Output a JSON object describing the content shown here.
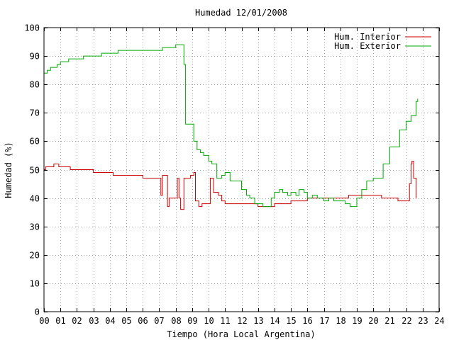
{
  "chart_data": {
    "type": "line",
    "title": "Humedad 12/01/2008",
    "xlabel": "Tiempo (Hora Local Argentina)",
    "ylabel": "Humedad (%)",
    "xlim": [
      0,
      24
    ],
    "ylim": [
      0,
      100
    ],
    "x_ticks": [
      "00",
      "01",
      "02",
      "03",
      "04",
      "05",
      "06",
      "07",
      "08",
      "09",
      "10",
      "11",
      "12",
      "13",
      "14",
      "15",
      "16",
      "17",
      "18",
      "19",
      "20",
      "21",
      "22",
      "23",
      "24"
    ],
    "y_ticks": [
      "0",
      "10",
      "20",
      "30",
      "40",
      "50",
      "60",
      "70",
      "80",
      "90",
      "100"
    ],
    "grid": true,
    "legend_position": "top-right",
    "series": [
      {
        "name": "Hum. Interior",
        "color": "#cc0000",
        "points": [
          [
            0.0,
            50
          ],
          [
            0.1,
            51
          ],
          [
            0.4,
            51
          ],
          [
            0.6,
            52
          ],
          [
            0.9,
            51
          ],
          [
            1.3,
            51
          ],
          [
            1.6,
            50
          ],
          [
            2.0,
            50
          ],
          [
            2.3,
            50
          ],
          [
            2.7,
            50
          ],
          [
            3.0,
            49
          ],
          [
            3.5,
            49
          ],
          [
            4.0,
            49
          ],
          [
            4.2,
            48
          ],
          [
            4.6,
            48
          ],
          [
            5.0,
            48
          ],
          [
            5.3,
            48
          ],
          [
            5.6,
            48
          ],
          [
            6.0,
            47
          ],
          [
            6.5,
            47
          ],
          [
            6.9,
            47
          ],
          [
            7.1,
            41
          ],
          [
            7.2,
            48
          ],
          [
            7.4,
            48
          ],
          [
            7.5,
            37
          ],
          [
            7.6,
            40
          ],
          [
            8.0,
            40
          ],
          [
            8.1,
            47
          ],
          [
            8.2,
            40
          ],
          [
            8.3,
            36
          ],
          [
            8.5,
            47
          ],
          [
            8.9,
            48
          ],
          [
            9.1,
            49
          ],
          [
            9.2,
            39
          ],
          [
            9.4,
            37
          ],
          [
            9.6,
            38
          ],
          [
            10.0,
            38
          ],
          [
            10.1,
            47
          ],
          [
            10.3,
            42
          ],
          [
            10.6,
            41
          ],
          [
            10.8,
            39
          ],
          [
            11.0,
            38
          ],
          [
            11.5,
            38
          ],
          [
            12.0,
            38
          ],
          [
            12.5,
            38
          ],
          [
            13.0,
            37
          ],
          [
            13.5,
            37
          ],
          [
            14.0,
            38
          ],
          [
            14.5,
            38
          ],
          [
            15.0,
            39
          ],
          [
            15.5,
            39
          ],
          [
            16.0,
            40
          ],
          [
            16.5,
            40
          ],
          [
            17.0,
            40
          ],
          [
            17.5,
            40
          ],
          [
            18.0,
            40
          ],
          [
            18.5,
            41
          ],
          [
            19.0,
            41
          ],
          [
            19.5,
            41
          ],
          [
            20.0,
            41
          ],
          [
            20.5,
            40
          ],
          [
            21.0,
            40
          ],
          [
            21.5,
            39
          ],
          [
            22.0,
            39
          ],
          [
            22.2,
            45
          ],
          [
            22.3,
            52
          ],
          [
            22.35,
            53
          ],
          [
            22.45,
            47
          ],
          [
            22.6,
            40
          ]
        ]
      },
      {
        "name": "Hum. Exterior",
        "color": "#00aa00",
        "points": [
          [
            0.0,
            84
          ],
          [
            0.2,
            85
          ],
          [
            0.4,
            86
          ],
          [
            0.8,
            87
          ],
          [
            1.0,
            88
          ],
          [
            1.3,
            88
          ],
          [
            1.5,
            89
          ],
          [
            2.0,
            89
          ],
          [
            2.4,
            90
          ],
          [
            3.0,
            90
          ],
          [
            3.5,
            91
          ],
          [
            4.0,
            91
          ],
          [
            4.5,
            92
          ],
          [
            5.0,
            92
          ],
          [
            6.0,
            92
          ],
          [
            7.0,
            92
          ],
          [
            7.2,
            93
          ],
          [
            7.5,
            93
          ],
          [
            7.8,
            93
          ],
          [
            8.0,
            94
          ],
          [
            8.3,
            94
          ],
          [
            8.5,
            87
          ],
          [
            8.6,
            66
          ],
          [
            9.0,
            66
          ],
          [
            9.1,
            60
          ],
          [
            9.3,
            57
          ],
          [
            9.5,
            56
          ],
          [
            9.7,
            55
          ],
          [
            10.0,
            53
          ],
          [
            10.2,
            52
          ],
          [
            10.5,
            47
          ],
          [
            10.8,
            48
          ],
          [
            11.0,
            49
          ],
          [
            11.3,
            46
          ],
          [
            11.6,
            46
          ],
          [
            12.0,
            43
          ],
          [
            12.3,
            41
          ],
          [
            12.5,
            40
          ],
          [
            12.8,
            38
          ],
          [
            13.0,
            38
          ],
          [
            13.3,
            37
          ],
          [
            13.5,
            37
          ],
          [
            13.8,
            40
          ],
          [
            14.0,
            42
          ],
          [
            14.3,
            43
          ],
          [
            14.5,
            42
          ],
          [
            14.8,
            41
          ],
          [
            15.0,
            42
          ],
          [
            15.3,
            41
          ],
          [
            15.5,
            43
          ],
          [
            15.8,
            42
          ],
          [
            16.0,
            40
          ],
          [
            16.3,
            41
          ],
          [
            16.6,
            40
          ],
          [
            17.0,
            39
          ],
          [
            17.3,
            40
          ],
          [
            17.6,
            39
          ],
          [
            18.0,
            39
          ],
          [
            18.3,
            38
          ],
          [
            18.6,
            37
          ],
          [
            19.0,
            40
          ],
          [
            19.3,
            43
          ],
          [
            19.6,
            46
          ],
          [
            20.0,
            47
          ],
          [
            20.3,
            47
          ],
          [
            20.6,
            52
          ],
          [
            21.0,
            58
          ],
          [
            21.3,
            58
          ],
          [
            21.6,
            64
          ],
          [
            22.0,
            67
          ],
          [
            22.3,
            69
          ],
          [
            22.6,
            74
          ],
          [
            22.7,
            75
          ]
        ]
      }
    ]
  }
}
